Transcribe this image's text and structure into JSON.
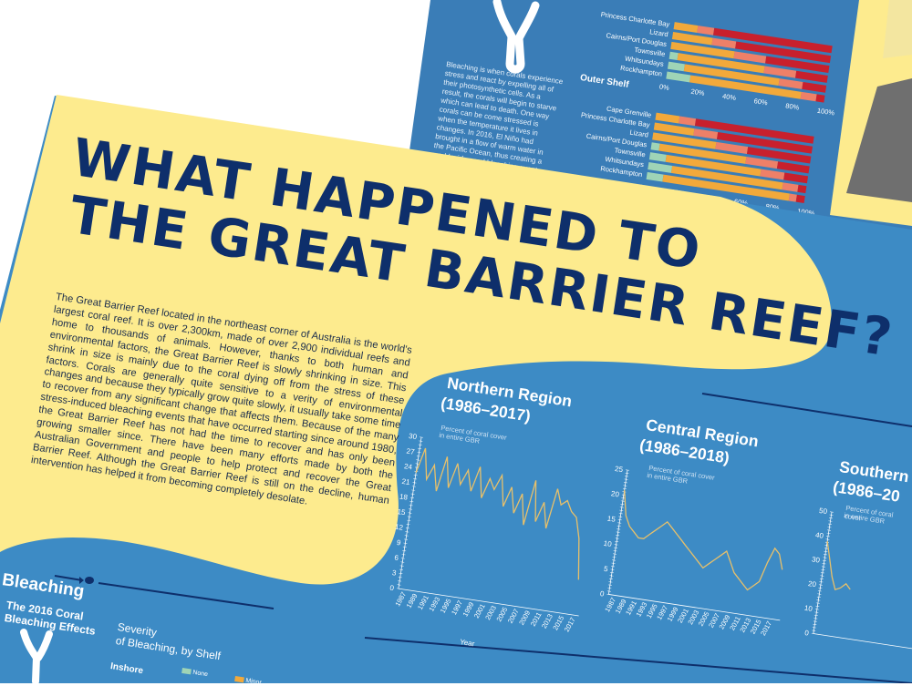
{
  "back_poster": {
    "bleaching_text": "Bleaching is when corals experience stress and react by expelling all of their photosynthetic cells. As a result, the corals will begin to starve which can lead to death. One way corals can be come stressed is when the temperature it lives in changes. In 2016, El Niño had brought in a flow of warm water in the Pacific Ocean, thus creating a world-wide coral bleaching event.",
    "outer_shelf_label": "Outer Shelf",
    "locations_top": [
      "Princess Charlotte Bay",
      "Lizard",
      "Cairns/Port Douglas",
      "Townsville",
      "Whitsundays",
      "Rockhampton"
    ],
    "locations_outer": [
      "Cape Grenville",
      "Princess Charlotte Bay",
      "Lizard",
      "Cairns/Port Douglas",
      "Townsville",
      "Whitsundays",
      "Rockhampton"
    ],
    "percent_ticks": [
      "0%",
      "20%",
      "40%",
      "60%",
      "80%",
      "100%"
    ]
  },
  "poster": {
    "title_line1": "WHAT HAPPENED TO",
    "title_line2": "THE GREAT BARRIER REEF?",
    "intro": "The Great Barrier Reef located in the northeast corner of Australia is the world's largest coral reef. It is over 2,300km, made of over 2,900 individual reefs and home to thousands of animals. However, thanks to both human and environmental factors, the Great Barrier Reef is slowly shrinking in size. This shrink in size is mainly due to the coral dying off from the stress of these factors. Corals are generally quite sensitive to a verity of environmental changes and because they typically grow quite slowly, it usually take some time to recover from any significant change that affects them. Because of the many stress-induced bleaching events that have occurred starting since around 1980, the Great Barrier Reef has not had the time to recover and has only been growing smaller since. There have been many efforts made by both the Australian Government and people to help protect and recover the Great Barrier Reef. Although the Great Barrier Reef is still on the decline, human intervention has helped it from becoming completely desolate.",
    "bleaching": {
      "title": "Bleaching",
      "subtitle_1": "The 2016 Coral",
      "subtitle_2": "Bleaching Effects",
      "severity_1": "Severity",
      "severity_2": "of Bleaching, by Shelf",
      "inshore": "Inshore",
      "legend_none": "None",
      "legend_minor": "Minor"
    },
    "charts": [
      {
        "title_1": "Northern Region",
        "title_2": "(1986–2017)",
        "sub_1": "Percent of coral cover",
        "sub_2": "in entire GBR",
        "xlabel": "Year"
      },
      {
        "title_1": "Central Region",
        "title_2": "(1986–2018)",
        "sub_1": "Percent of coral cover",
        "sub_2": "in entire GBR"
      },
      {
        "title_1": "Southern",
        "title_2": "(1986–20",
        "sub_1": "Percent of coral cover",
        "sub_2": "in entire GBR"
      }
    ]
  },
  "chart_data": [
    {
      "type": "line",
      "title": "Northern Region (1986–2017)",
      "ylabel": "Percent of coral cover in entire GBR",
      "xlabel": "Year",
      "ylim": [
        0,
        30
      ],
      "yticks": [
        0,
        3,
        6,
        9,
        12,
        15,
        18,
        21,
        24,
        27,
        30
      ],
      "xticks": [
        "1987",
        "1989",
        "1991",
        "1993",
        "1995",
        "1997",
        "1999",
        "2001",
        "2003",
        "2005",
        "2007",
        "2009",
        "2011",
        "2013",
        "2015",
        "2017"
      ],
      "series": [
        {
          "x": [
            1986,
            1987,
            1988,
            1989,
            1990,
            1991,
            1992,
            1993,
            1994,
            1995,
            1996,
            1997,
            1998,
            1999,
            2000,
            2001,
            2002,
            2003,
            2004,
            2005,
            2006,
            2007,
            2008,
            2009,
            2010,
            2011,
            2012,
            2013,
            2014,
            2015,
            2016,
            2017
          ],
          "values": [
            23,
            28,
            22,
            25,
            20,
            27,
            21,
            26,
            22,
            25,
            21,
            26,
            20,
            24,
            22,
            25,
            19,
            23,
            18,
            22,
            16,
            25,
            17,
            21,
            16,
            24,
            21,
            22,
            20,
            19,
            15,
            7
          ]
        }
      ],
      "line_color": "#e8c06a"
    },
    {
      "type": "line",
      "title": "Central Region (1986–2018)",
      "ylabel": "Percent of coral cover in entire GBR",
      "ylim": [
        0,
        25
      ],
      "yticks": [
        0,
        5,
        10,
        15,
        20,
        25
      ],
      "xticks": [
        "1987",
        "1989",
        "1991",
        "1993",
        "1995",
        "1997",
        "1999",
        "2001",
        "2003",
        "2005",
        "2007",
        "2009",
        "2011",
        "2013",
        "2015",
        "2017"
      ],
      "series": [
        {
          "x": [
            1986,
            1987,
            1988,
            1989,
            1990,
            1991,
            1992,
            1993,
            1994,
            1995,
            1996,
            1997,
            1998,
            1999,
            2000,
            2001,
            2002,
            2003,
            2004,
            2005,
            2006,
            2007,
            2008,
            2009,
            2010,
            2011,
            2012,
            2013,
            2014,
            2015,
            2016,
            2017,
            2018
          ],
          "values": [
            21,
            16,
            14,
            13,
            12,
            12,
            13,
            14,
            15,
            16,
            15,
            14,
            13,
            12,
            11,
            10,
            9,
            8,
            9,
            10,
            11,
            12,
            10,
            8,
            7,
            6,
            5,
            6,
            7,
            11,
            14,
            13,
            10
          ]
        }
      ],
      "line_color": "#e8c06a"
    },
    {
      "type": "line",
      "title": "Southern Region",
      "ylabel": "Percent of coral cover in entire GBR",
      "ylim": [
        0,
        50
      ],
      "yticks": [
        0,
        10,
        20,
        30,
        40,
        50
      ],
      "series": [
        {
          "x": [
            1986,
            1987,
            1988,
            1989,
            1990,
            1991,
            1992
          ],
          "values": [
            38,
            31,
            24,
            19,
            20,
            22,
            20
          ]
        }
      ],
      "line_color": "#e8c06a"
    }
  ],
  "colors": {
    "poster_blue": "#3d8bc5",
    "dark_blue": "#0e2f6b",
    "yellow": "#fdeb8e",
    "line_yellow": "#e8c06a",
    "bar_orange": "#f2a93b",
    "bar_red": "#c8202d",
    "bar_salmon": "#ee8068",
    "bar_mint": "#9fd4b6"
  }
}
